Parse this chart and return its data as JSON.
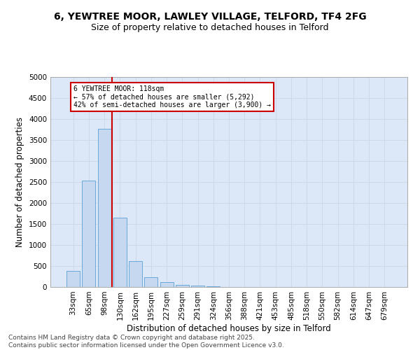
{
  "title_line1": "6, YEWTREE MOOR, LAWLEY VILLAGE, TELFORD, TF4 2FG",
  "title_line2": "Size of property relative to detached houses in Telford",
  "xlabel": "Distribution of detached houses by size in Telford",
  "ylabel": "Number of detached properties",
  "categories": [
    "33sqm",
    "65sqm",
    "98sqm",
    "130sqm",
    "162sqm",
    "195sqm",
    "227sqm",
    "259sqm",
    "291sqm",
    "324sqm",
    "356sqm",
    "388sqm",
    "421sqm",
    "453sqm",
    "485sqm",
    "518sqm",
    "550sqm",
    "582sqm",
    "614sqm",
    "647sqm",
    "679sqm"
  ],
  "values": [
    390,
    2540,
    3760,
    1650,
    610,
    230,
    115,
    55,
    30,
    20,
    5,
    0,
    0,
    0,
    0,
    0,
    0,
    0,
    0,
    0,
    0
  ],
  "bar_color": "#c5d8f0",
  "bar_edge_color": "#5a9fd4",
  "vline_color": "#cc0000",
  "annotation_box_text": "6 YEWTREE MOOR: 118sqm\n← 57% of detached houses are smaller (5,292)\n42% of semi-detached houses are larger (3,900) →",
  "ylim": [
    0,
    5000
  ],
  "yticks": [
    0,
    500,
    1000,
    1500,
    2000,
    2500,
    3000,
    3500,
    4000,
    4500,
    5000
  ],
  "grid_color": "#d0d8e8",
  "background_color": "#dce8f8",
  "footer_text": "Contains HM Land Registry data © Crown copyright and database right 2025.\nContains public sector information licensed under the Open Government Licence v3.0.",
  "title_fontsize": 10,
  "subtitle_fontsize": 9,
  "axis_label_fontsize": 8.5,
  "tick_fontsize": 7.5,
  "footer_fontsize": 6.5
}
